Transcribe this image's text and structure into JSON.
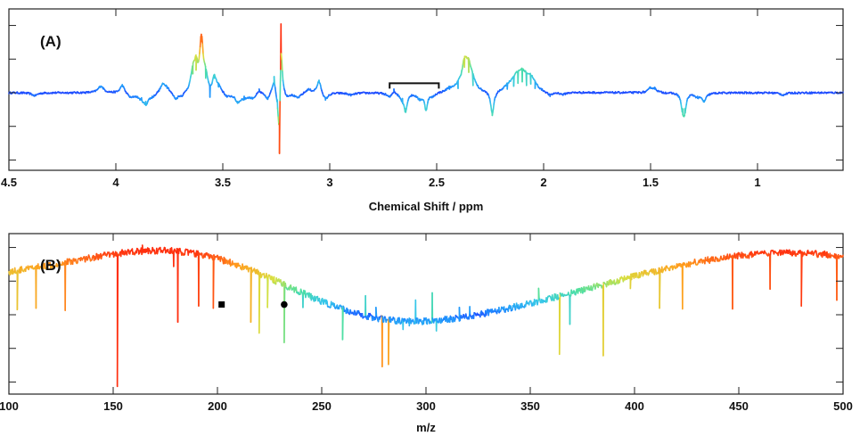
{
  "chart_data": [
    {
      "type": "line",
      "panel_label": "(A)",
      "xlabel": "Chemical Shift / ppm",
      "ylabel": "",
      "x_reversed": true,
      "xlim": [
        4.5,
        0.6
      ],
      "ylim": [
        -1.0,
        1.0
      ],
      "ytick_count": 5,
      "xticks": [
        {
          "value": 4.5,
          "label": "4.5"
        },
        {
          "value": 4.0,
          "label": "4"
        },
        {
          "value": 3.5,
          "label": "3.5"
        },
        {
          "value": 3.0,
          "label": "3"
        },
        {
          "value": 2.5,
          "label": "2.5"
        },
        {
          "value": 2.0,
          "label": "2"
        },
        {
          "value": 1.5,
          "label": "1.5"
        },
        {
          "value": 1.0,
          "label": "1"
        }
      ],
      "colormap": [
        "#1f3fff",
        "#1e90ff",
        "#38c8e8",
        "#4fe0a0",
        "#d8e040",
        "#ffa020",
        "#ff3010"
      ],
      "series": [
        {
          "baseline": 0.0,
          "noise": 0.012,
          "peaks": [
            {
              "x": 4.38,
              "h": -0.04,
              "w": 0.004
            },
            {
              "x": 4.07,
              "h": 0.09,
              "w": 0.004
            },
            {
              "x": 3.97,
              "h": 0.11,
              "w": 0.003
            },
            {
              "x": 3.93,
              "h": -0.06,
              "w": 0.004
            },
            {
              "x": 3.88,
              "h": -0.07,
              "w": 0.006
            },
            {
              "x": 3.86,
              "h": -0.12,
              "w": 0.003
            },
            {
              "x": 3.83,
              "h": -0.05,
              "w": 0.005
            },
            {
              "x": 3.78,
              "h": 0.12,
              "w": 0.004
            },
            {
              "x": 3.76,
              "h": 0.06,
              "w": 0.003
            },
            {
              "x": 3.72,
              "h": -0.09,
              "w": 0.004
            },
            {
              "x": 3.69,
              "h": -0.05,
              "w": 0.004
            },
            {
              "x": 3.64,
              "h": 0.26,
              "w": 0.003
            },
            {
              "x": 3.625,
              "h": 0.31,
              "w": 0.0025
            },
            {
              "x": 3.6,
              "h": 0.7,
              "w": 0.0025
            },
            {
              "x": 3.58,
              "h": 0.2,
              "w": 0.003
            },
            {
              "x": 3.56,
              "h": -0.06,
              "w": 0.004
            },
            {
              "x": 3.54,
              "h": 0.2,
              "w": 0.003
            },
            {
              "x": 3.52,
              "h": 0.08,
              "w": 0.004
            },
            {
              "x": 3.48,
              "h": -0.06,
              "w": 0.005
            },
            {
              "x": 3.43,
              "h": -0.12,
              "w": 0.004
            },
            {
              "x": 3.4,
              "h": -0.05,
              "w": 0.004
            },
            {
              "x": 3.36,
              "h": -0.07,
              "w": 0.006
            },
            {
              "x": 3.33,
              "h": 0.05,
              "w": 0.004
            },
            {
              "x": 3.29,
              "h": -0.09,
              "w": 0.004
            },
            {
              "x": 3.26,
              "h": 0.22,
              "w": 0.003
            },
            {
              "x": 3.245,
              "h": -0.1,
              "w": 0.003
            },
            {
              "x": 3.228,
              "h": 0.94,
              "w": 0.0018
            },
            {
              "x": 3.235,
              "h": -0.83,
              "w": 0.0018
            },
            {
              "x": 3.2,
              "h": -0.05,
              "w": 0.004
            },
            {
              "x": 3.15,
              "h": -0.07,
              "w": 0.005
            },
            {
              "x": 3.1,
              "h": 0.05,
              "w": 0.004
            },
            {
              "x": 3.05,
              "h": 0.17,
              "w": 0.003
            },
            {
              "x": 3.02,
              "h": -0.1,
              "w": 0.004
            },
            {
              "x": 2.9,
              "h": -0.03,
              "w": 0.005
            },
            {
              "x": 2.72,
              "h": -0.06,
              "w": 0.004
            },
            {
              "x": 2.7,
              "h": 0.05,
              "w": 0.003
            },
            {
              "x": 2.66,
              "h": -0.08,
              "w": 0.004
            },
            {
              "x": 2.645,
              "h": -0.22,
              "w": 0.002
            },
            {
              "x": 2.58,
              "h": -0.08,
              "w": 0.004
            },
            {
              "x": 2.55,
              "h": -0.22,
              "w": 0.002
            },
            {
              "x": 2.52,
              "h": -0.05,
              "w": 0.004
            },
            {
              "x": 2.44,
              "h": 0.05,
              "w": 0.004
            },
            {
              "x": 2.4,
              "h": 0.06,
              "w": 0.004
            },
            {
              "x": 2.37,
              "h": 0.35,
              "w": 0.004
            },
            {
              "x": 2.35,
              "h": 0.28,
              "w": 0.004
            },
            {
              "x": 2.33,
              "h": 0.1,
              "w": 0.004
            },
            {
              "x": 2.24,
              "h": -0.31,
              "w": 0.0025
            },
            {
              "x": 2.17,
              "h": 0.05,
              "w": 0.006
            },
            {
              "x": 2.14,
              "h": 0.09,
              "w": 0.006
            },
            {
              "x": 2.12,
              "h": 0.13,
              "w": 0.006
            },
            {
              "x": 2.1,
              "h": 0.15,
              "w": 0.005
            },
            {
              "x": 2.08,
              "h": 0.1,
              "w": 0.005
            },
            {
              "x": 2.06,
              "h": 0.12,
              "w": 0.004
            },
            {
              "x": 2.04,
              "h": 0.06,
              "w": 0.005
            },
            {
              "x": 1.97,
              "h": -0.05,
              "w": 0.004
            },
            {
              "x": 1.91,
              "h": -0.03,
              "w": 0.004
            },
            {
              "x": 1.5,
              "h": 0.06,
              "w": 0.003
            },
            {
              "x": 1.48,
              "h": 0.05,
              "w": 0.003
            },
            {
              "x": 1.35,
              "h": -0.22,
              "w": 0.002
            },
            {
              "x": 1.34,
              "h": -0.22,
              "w": 0.002
            },
            {
              "x": 1.28,
              "h": -0.05,
              "w": 0.004
            },
            {
              "x": 1.25,
              "h": -0.11,
              "w": 0.003
            },
            {
              "x": 0.88,
              "h": -0.03,
              "w": 0.004
            }
          ]
        }
      ],
      "annotations": [
        {
          "kind": "bracket",
          "x1": 2.72,
          "x2": 2.49,
          "y": 0.13
        }
      ]
    },
    {
      "type": "line",
      "panel_label": "(B)",
      "xlabel": "m/z",
      "ylabel": "",
      "x_reversed": false,
      "xlim": [
        100,
        500
      ],
      "ylim": [
        -1.0,
        1.0
      ],
      "ytick_count": 5,
      "xticks": [
        {
          "value": 100,
          "label": "100"
        },
        {
          "value": 150,
          "label": "150"
        },
        {
          "value": 200,
          "label": "200"
        },
        {
          "value": 250,
          "label": "250"
        },
        {
          "value": 300,
          "label": "300"
        },
        {
          "value": 350,
          "label": "350"
        },
        {
          "value": 400,
          "label": "400"
        },
        {
          "value": 450,
          "label": "450"
        },
        {
          "value": 500,
          "label": "500"
        }
      ],
      "colormap": [
        "#1f3fff",
        "#1e90ff",
        "#38c8e8",
        "#4fe0a0",
        "#d8e040",
        "#ffa020",
        "#ff3010"
      ],
      "series": [
        {
          "baseline": 0.0,
          "noise": 0.045,
          "peaks": [
            {
              "x": 104,
              "h": 0.07,
              "w": 0.3
            },
            {
              "x": 113,
              "h": 0.09,
              "w": 0.3
            },
            {
              "x": 127,
              "h": 0.06,
              "w": 0.3
            },
            {
              "x": 152,
              "h": -0.98,
              "w": 0.25
            },
            {
              "x": 164,
              "h": 0.95,
              "w": 0.25
            },
            {
              "x": 179,
              "h": 0.66,
              "w": 0.25
            },
            {
              "x": 181,
              "h": -0.1,
              "w": 0.3
            },
            {
              "x": 191,
              "h": 0.12,
              "w": 0.3
            },
            {
              "x": 198,
              "h": 0.09,
              "w": 0.3
            },
            {
              "x": 213,
              "h": 0.66,
              "w": 0.25
            },
            {
              "x": 216,
              "h": -0.1,
              "w": 0.3
            },
            {
              "x": 220,
              "h": -0.25,
              "w": 0.3
            },
            {
              "x": 224,
              "h": 0.1,
              "w": 0.3
            },
            {
              "x": 232,
              "h": -0.38,
              "w": 0.25
            },
            {
              "x": 241,
              "h": 0.1,
              "w": 0.3
            },
            {
              "x": 245,
              "h": 0.2,
              "w": 0.3
            },
            {
              "x": 256,
              "h": 0.15,
              "w": 0.3
            },
            {
              "x": 260,
              "h": -0.34,
              "w": 0.3
            },
            {
              "x": 271,
              "h": 0.26,
              "w": 0.3
            },
            {
              "x": 276,
              "h": 0.1,
              "w": 0.3
            },
            {
              "x": 279,
              "h": -0.71,
              "w": 0.25
            },
            {
              "x": 282,
              "h": -0.68,
              "w": 0.25
            },
            {
              "x": 289,
              "h": -0.2,
              "w": 0.3
            },
            {
              "x": 292,
              "h": -0.15,
              "w": 0.3
            },
            {
              "x": 295,
              "h": 0.2,
              "w": 0.3
            },
            {
              "x": 303,
              "h": 0.3,
              "w": 0.3
            },
            {
              "x": 305,
              "h": -0.22,
              "w": 0.3
            },
            {
              "x": 316,
              "h": 0.1,
              "w": 0.3
            },
            {
              "x": 321,
              "h": 0.11,
              "w": 0.3
            },
            {
              "x": 335,
              "h": 0.1,
              "w": 0.3
            },
            {
              "x": 354,
              "h": 0.36,
              "w": 0.3
            },
            {
              "x": 364,
              "h": -0.54,
              "w": 0.25
            },
            {
              "x": 369,
              "h": -0.13,
              "w": 0.35
            },
            {
              "x": 373,
              "h": 0.34,
              "w": 0.3
            },
            {
              "x": 385,
              "h": -0.56,
              "w": 0.3
            },
            {
              "x": 398,
              "h": 0.36,
              "w": 0.3
            },
            {
              "x": 412,
              "h": 0.09,
              "w": 0.3
            },
            {
              "x": 423,
              "h": 0.08,
              "w": 0.3
            },
            {
              "x": 447,
              "h": 0.08,
              "w": 0.3
            },
            {
              "x": 465,
              "h": 0.35,
              "w": 0.3
            },
            {
              "x": 480,
              "h": 0.12,
              "w": 0.3
            },
            {
              "x": 497,
              "h": 0.2,
              "w": 0.3
            }
          ]
        }
      ],
      "annotations": [
        {
          "kind": "square-marker",
          "x": 202,
          "y": 0.14
        },
        {
          "kind": "circle-marker",
          "x": 232,
          "y": 0.14
        }
      ]
    }
  ]
}
